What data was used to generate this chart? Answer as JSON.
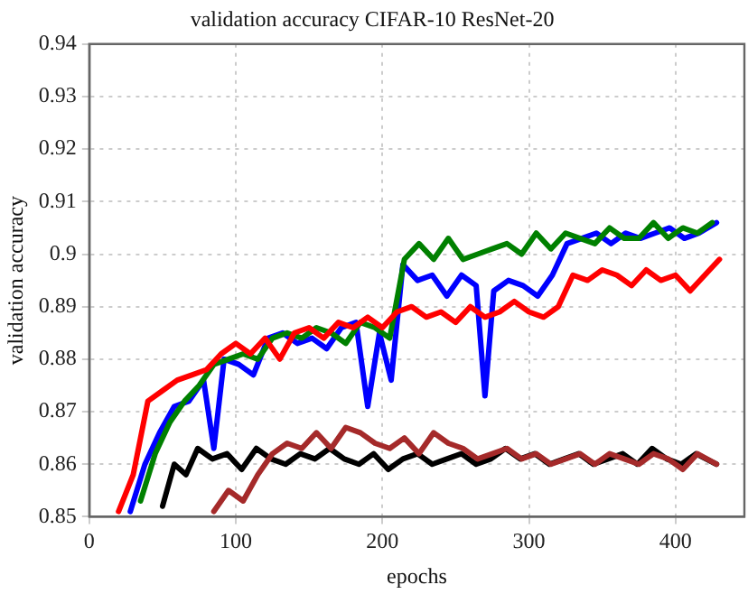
{
  "chart_data": {
    "type": "line",
    "title": "validation accuracy CIFAR-10 ResNet-20",
    "xlabel": "epochs",
    "ylabel": "validation accuracy",
    "xlim": [
      0,
      447
    ],
    "xticks": [
      0,
      100,
      200,
      300,
      400
    ],
    "ylim": [
      0.85,
      0.94
    ],
    "yticks": [
      0.85,
      0.86,
      0.87,
      0.88,
      0.89,
      0.9,
      0.91,
      0.92,
      0.93,
      0.94
    ],
    "grid": true,
    "legend": false,
    "marker": "none",
    "line_style": "solid",
    "series": [
      {
        "color": "#a52a2a",
        "x": [
          85,
          95,
          105,
          115,
          125,
          135,
          145,
          155,
          165,
          175,
          185,
          195,
          205,
          215,
          225,
          235,
          245,
          255,
          265,
          275,
          285,
          295,
          305,
          315,
          325,
          335,
          345,
          355,
          365,
          375,
          385,
          395,
          405,
          415,
          428
        ],
        "values": [
          0.851,
          0.855,
          0.853,
          0.858,
          0.862,
          0.864,
          0.863,
          0.866,
          0.863,
          0.867,
          0.866,
          0.864,
          0.863,
          0.865,
          0.862,
          0.866,
          0.864,
          0.863,
          0.861,
          0.862,
          0.863,
          0.861,
          0.862,
          0.86,
          0.861,
          0.862,
          0.86,
          0.862,
          0.861,
          0.86,
          0.862,
          0.861,
          0.859,
          0.862,
          0.86
        ]
      },
      {
        "color": "#000000",
        "x": [
          50,
          58,
          66,
          74,
          84,
          94,
          104,
          114,
          124,
          134,
          144,
          154,
          164,
          174,
          184,
          194,
          204,
          214,
          224,
          234,
          244,
          254,
          264,
          274,
          284,
          294,
          304,
          314,
          324,
          334,
          344,
          354,
          364,
          374,
          384,
          394,
          404,
          414,
          428
        ],
        "values": [
          0.852,
          0.86,
          0.858,
          0.863,
          0.861,
          0.862,
          0.859,
          0.863,
          0.861,
          0.86,
          0.862,
          0.861,
          0.863,
          0.861,
          0.86,
          0.862,
          0.859,
          0.861,
          0.862,
          0.86,
          0.861,
          0.862,
          0.86,
          0.861,
          0.863,
          0.861,
          0.862,
          0.86,
          0.861,
          0.862,
          0.86,
          0.861,
          0.862,
          0.86,
          0.863,
          0.861,
          0.86,
          0.862,
          0.86
        ]
      },
      {
        "color": "#ff0000",
        "x": [
          20,
          30,
          40,
          50,
          60,
          70,
          80,
          90,
          100,
          110,
          120,
          130,
          140,
          150,
          160,
          170,
          180,
          190,
          200,
          210,
          220,
          230,
          240,
          250,
          260,
          270,
          280,
          290,
          300,
          310,
          320,
          330,
          340,
          350,
          360,
          370,
          380,
          390,
          400,
          410,
          420,
          430
        ],
        "values": [
          0.851,
          0.858,
          0.872,
          0.874,
          0.876,
          0.877,
          0.878,
          0.881,
          0.883,
          0.881,
          0.884,
          0.88,
          0.885,
          0.886,
          0.884,
          0.887,
          0.886,
          0.888,
          0.886,
          0.889,
          0.89,
          0.888,
          0.889,
          0.887,
          0.89,
          0.888,
          0.889,
          0.891,
          0.889,
          0.888,
          0.89,
          0.896,
          0.895,
          0.897,
          0.896,
          0.894,
          0.897,
          0.895,
          0.896,
          0.893,
          0.896,
          0.899
        ]
      },
      {
        "color": "#008000",
        "x": [
          35,
          45,
          55,
          65,
          75,
          85,
          95,
          105,
          115,
          125,
          135,
          145,
          155,
          165,
          175,
          185,
          195,
          205,
          215,
          225,
          235,
          245,
          255,
          265,
          275,
          285,
          295,
          305,
          315,
          325,
          335,
          345,
          355,
          365,
          375,
          385,
          395,
          405,
          415,
          425
        ],
        "values": [
          0.853,
          0.862,
          0.868,
          0.872,
          0.875,
          0.879,
          0.88,
          0.881,
          0.88,
          0.884,
          0.885,
          0.884,
          0.886,
          0.885,
          0.883,
          0.887,
          0.886,
          0.884,
          0.899,
          0.902,
          0.899,
          0.903,
          0.899,
          0.9,
          0.901,
          0.902,
          0.9,
          0.904,
          0.901,
          0.904,
          0.903,
          0.902,
          0.905,
          0.903,
          0.903,
          0.906,
          0.903,
          0.905,
          0.904,
          0.906
        ]
      },
      {
        "color": "#0000ff",
        "x": [
          28,
          38,
          48,
          58,
          68,
          78,
          85,
          92,
          102,
          112,
          122,
          132,
          142,
          152,
          162,
          172,
          182,
          190,
          198,
          206,
          214,
          224,
          234,
          244,
          254,
          264,
          270,
          276,
          286,
          296,
          306,
          316,
          326,
          336,
          346,
          356,
          366,
          376,
          386,
          396,
          406,
          416,
          428
        ],
        "values": [
          0.851,
          0.86,
          0.866,
          0.871,
          0.872,
          0.876,
          0.863,
          0.88,
          0.879,
          0.877,
          0.884,
          0.885,
          0.883,
          0.884,
          0.882,
          0.886,
          0.887,
          0.871,
          0.885,
          0.876,
          0.898,
          0.895,
          0.896,
          0.892,
          0.896,
          0.894,
          0.873,
          0.893,
          0.895,
          0.894,
          0.892,
          0.896,
          0.902,
          0.903,
          0.904,
          0.902,
          0.904,
          0.903,
          0.904,
          0.905,
          0.903,
          0.904,
          0.906
        ]
      }
    ]
  }
}
